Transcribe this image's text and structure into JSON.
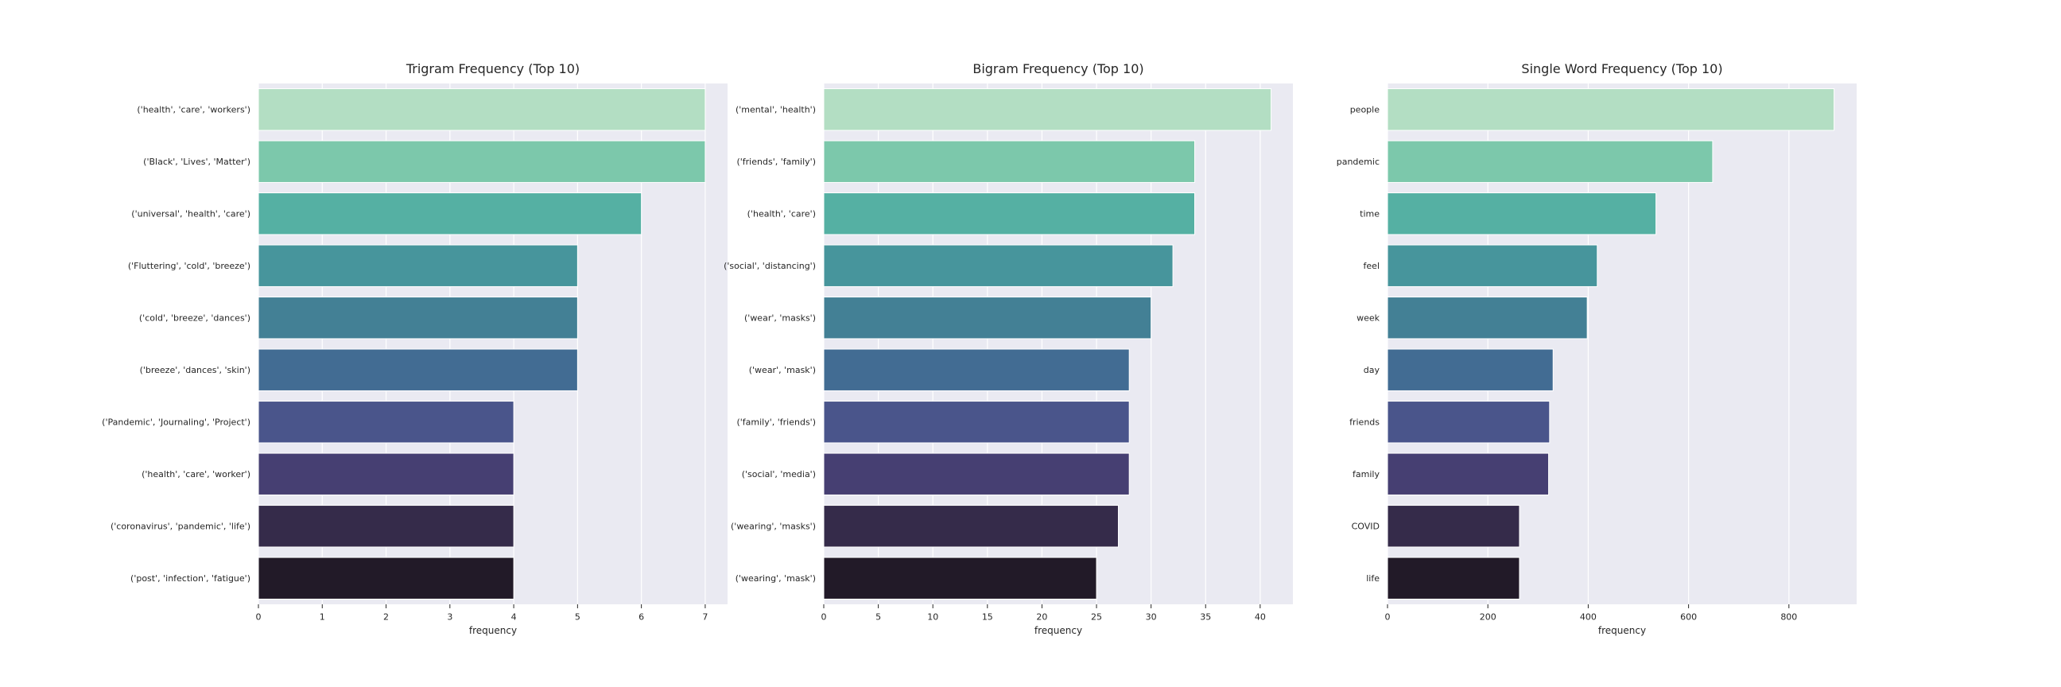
{
  "chart_data": [
    {
      "type": "bar",
      "orientation": "horizontal",
      "title": "Trigram Frequency (Top 10)",
      "xlabel": "frequency",
      "ylabel": "",
      "xlim": [
        0,
        7.35
      ],
      "xticks": [
        0,
        1,
        2,
        3,
        4,
        5,
        6,
        7
      ],
      "grid": true,
      "categories": [
        "('health', 'care', 'workers')",
        "('Black', 'Lives', 'Matter')",
        "('universal', 'health', 'care')",
        "('Fluttering', 'cold', 'breeze')",
        "('cold', 'breeze', 'dances')",
        "('breeze', 'dances', 'skin')",
        "('Pandemic', 'Journaling', 'Project')",
        "('health', 'care', 'worker')",
        "('coronavirus', 'pandemic', 'life')",
        "('post', 'infection', 'fatigue')"
      ],
      "values": [
        7,
        7,
        6,
        5,
        5,
        5,
        4,
        4,
        4,
        4
      ]
    },
    {
      "type": "bar",
      "orientation": "horizontal",
      "title": "Bigram Frequency (Top 10)",
      "xlabel": "frequency",
      "ylabel": "",
      "xlim": [
        0,
        43
      ],
      "xticks": [
        0,
        5,
        10,
        15,
        20,
        25,
        30,
        35,
        40
      ],
      "grid": true,
      "categories": [
        "('mental', 'health')",
        "('friends', 'family')",
        "('health', 'care')",
        "('social', 'distancing')",
        "('wear', 'masks')",
        "('wear', 'mask')",
        "('family', 'friends')",
        "('social', 'media')",
        "('wearing', 'masks')",
        "('wearing', 'mask')"
      ],
      "values": [
        41,
        34,
        34,
        32,
        30,
        28,
        28,
        28,
        27,
        25
      ]
    },
    {
      "type": "bar",
      "orientation": "horizontal",
      "title": "Single Word Frequency (Top 10)",
      "xlabel": "frequency",
      "ylabel": "",
      "xlim": [
        0,
        935
      ],
      "xticks": [
        0,
        200,
        400,
        600,
        800
      ],
      "grid": true,
      "categories": [
        "people",
        "pandemic",
        "time",
        "feel",
        "week",
        "day",
        "friends",
        "family",
        "COVID",
        "life"
      ],
      "values": [
        890,
        648,
        535,
        418,
        398,
        330,
        323,
        321,
        263,
        263
      ]
    }
  ],
  "palette": [
    "#b3dec3",
    "#7cc8ab",
    "#55b0a3",
    "#47959c",
    "#438095",
    "#426c93",
    "#4a558b",
    "#463f72",
    "#352b4a",
    "#221a28"
  ],
  "colors": {
    "axes_bg": "#eaeaf2",
    "grid": "#ffffff",
    "text": "#262626",
    "bar_edge": "#ffffff"
  }
}
